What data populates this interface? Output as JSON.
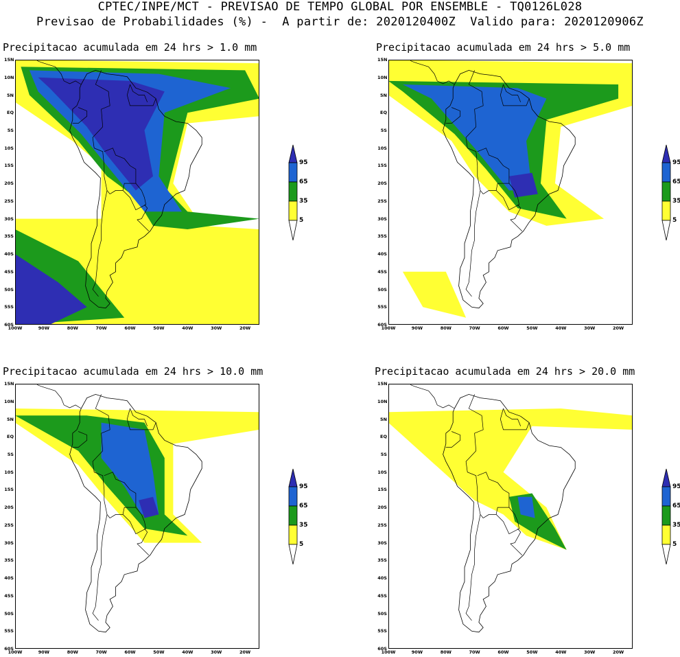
{
  "header": {
    "line1": "CPTEC/INPE/MCT - PREVISAO DE TEMPO GLOBAL POR ENSEMBLE - TQ0126L028",
    "line2": "Previsao de Probabilidades (%) -  A partir de: 2020120400Z  Valido para: 2020120906Z"
  },
  "axes": {
    "lat_labels": [
      "15N",
      "10N",
      "5N",
      "EQ",
      "5S",
      "10S",
      "15S",
      "20S",
      "25S",
      "30S",
      "35S",
      "40S",
      "45S",
      "50S",
      "55S",
      "60S"
    ],
    "lon_labels": [
      "100W",
      "90W",
      "80W",
      "70W",
      "60W",
      "50W",
      "40W",
      "30W",
      "20W"
    ]
  },
  "panels": [
    {
      "title": "Precipitacao acumulada em 24 hrs > 1.0 mm"
    },
    {
      "title": "Precipitacao acumulada em 24 hrs > 5.0 mm"
    },
    {
      "title": "Precipitacao acumulada em 24 hrs > 10.0 mm"
    },
    {
      "title": "Precipitacao acumulada em 24 hrs > 20.0 mm"
    }
  ],
  "colorbar": {
    "labels": [
      "95",
      "65",
      "35",
      "5"
    ],
    "colors": {
      "p95": "#2e2eb3",
      "p65": "#1e64d2",
      "p35": "#1c9a1c",
      "p5": "#ffff33"
    }
  },
  "colors": {
    "land_outline": "#000000",
    "background": "#ffffff"
  }
}
